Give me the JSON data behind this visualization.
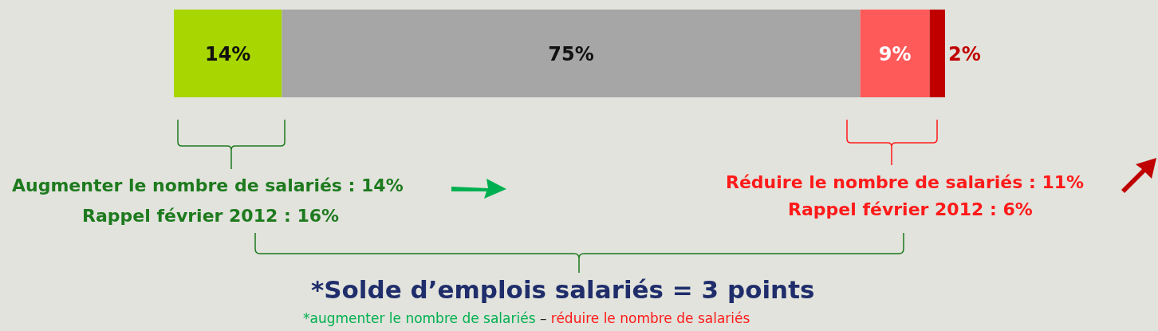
{
  "chart_data": {
    "type": "bar",
    "orientation": "horizontal",
    "stacked": true,
    "categories": [
      null
    ],
    "series": [
      {
        "color": "#a8d600",
        "values": [
          14
        ],
        "value_labels": [
          "14%"
        ]
      },
      {
        "color": "#a6a6a6",
        "values": [
          75
        ],
        "value_labels": [
          "75%"
        ]
      },
      {
        "color": "#ff5a5a",
        "values": [
          9
        ],
        "value_labels": [
          "9%"
        ]
      },
      {
        "color": "#c00000",
        "values": [
          2
        ],
        "value_labels": [
          "2%"
        ]
      }
    ],
    "tick_labels": false,
    "legend": false,
    "grid": false,
    "annotations": [
      "Augmenter le nombre de salariés : 14%",
      "Rappel février 2012 : 16%",
      "Réduire le nombre de salariés : 11%",
      "Rappel février 2012 : 6%",
      "*Solde d’emplois salariés = 3 points",
      "*augmenter le nombre de salariés",
      "–",
      "réduire le nombre de salariés"
    ]
  }
}
